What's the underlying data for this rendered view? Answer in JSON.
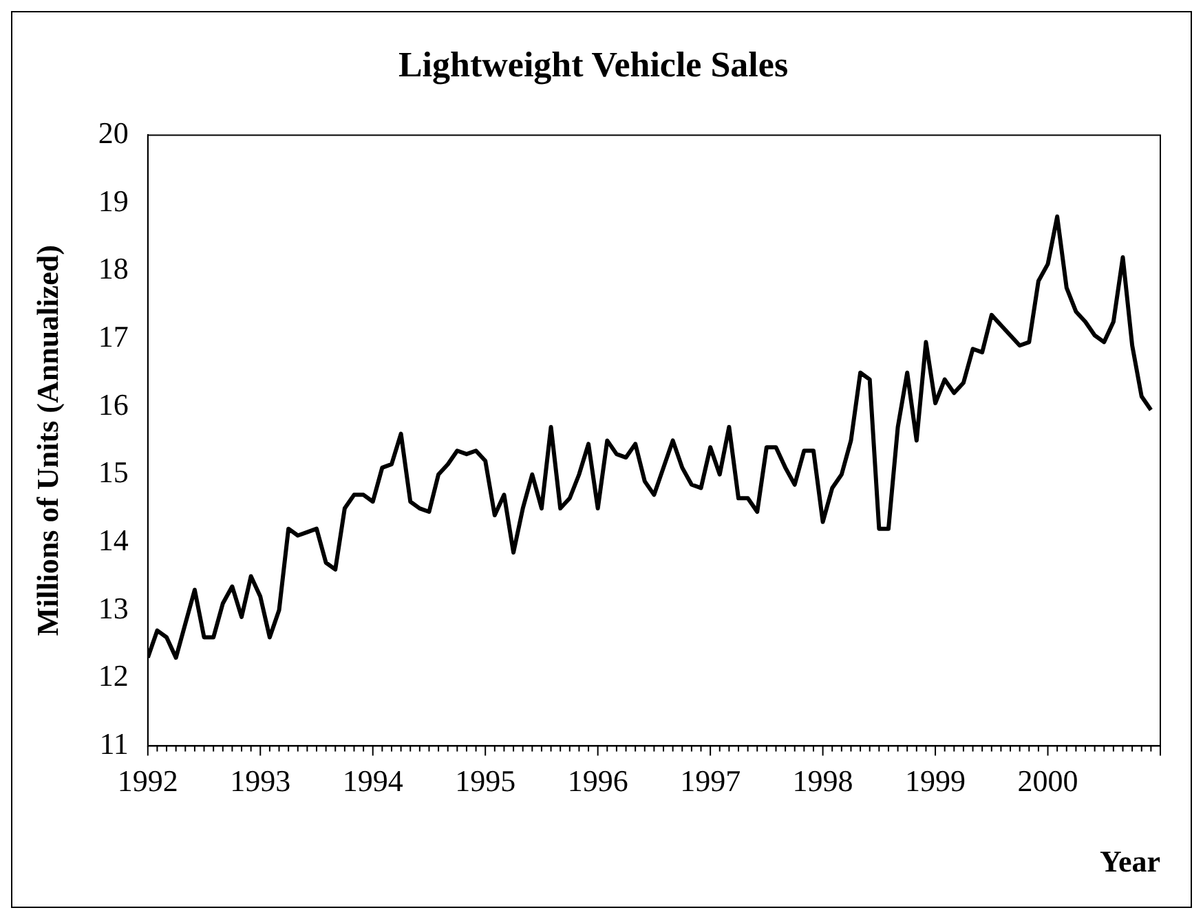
{
  "chart_data": {
    "type": "line",
    "title": "Lightweight Vehicle Sales",
    "xlabel": "Year",
    "ylabel": "Millions of Units (Annualized)",
    "x": [
      "1992-01",
      "1992-02",
      "1992-03",
      "1992-04",
      "1992-05",
      "1992-06",
      "1992-07",
      "1992-08",
      "1992-09",
      "1992-10",
      "1992-11",
      "1992-12",
      "1993-01",
      "1993-02",
      "1993-03",
      "1993-04",
      "1993-05",
      "1993-06",
      "1993-07",
      "1993-08",
      "1993-09",
      "1993-10",
      "1993-11",
      "1993-12",
      "1994-01",
      "1994-02",
      "1994-03",
      "1994-04",
      "1994-05",
      "1994-06",
      "1994-07",
      "1994-08",
      "1994-09",
      "1994-10",
      "1994-11",
      "1994-12",
      "1995-01",
      "1995-02",
      "1995-03",
      "1995-04",
      "1995-05",
      "1995-06",
      "1995-07",
      "1995-08",
      "1995-09",
      "1995-10",
      "1995-11",
      "1995-12",
      "1996-01",
      "1996-02",
      "1996-03",
      "1996-04",
      "1996-05",
      "1996-06",
      "1996-07",
      "1996-08",
      "1996-09",
      "1996-10",
      "1996-11",
      "1996-12",
      "1997-01",
      "1997-02",
      "1997-03",
      "1997-04",
      "1997-05",
      "1997-06",
      "1997-07",
      "1997-08",
      "1997-09",
      "1997-10",
      "1997-11",
      "1997-12",
      "1998-01",
      "1998-02",
      "1998-03",
      "1998-04",
      "1998-05",
      "1998-06",
      "1998-07",
      "1998-08",
      "1998-09",
      "1998-10",
      "1998-11",
      "1998-12",
      "1999-01",
      "1999-02",
      "1999-03",
      "1999-04",
      "1999-05",
      "1999-06",
      "1999-07",
      "1999-08",
      "1999-09",
      "1999-10",
      "1999-11",
      "1999-12",
      "2000-01",
      "2000-02",
      "2000-03",
      "2000-04",
      "2000-05",
      "2000-06",
      "2000-07",
      "2000-08",
      "2000-09",
      "2000-10",
      "2000-11",
      "2000-12"
    ],
    "series": [
      {
        "color": "#000000",
        "values": [
          12.3,
          12.7,
          12.6,
          12.3,
          12.8,
          13.3,
          12.6,
          12.6,
          13.1,
          13.35,
          12.9,
          13.5,
          13.2,
          12.6,
          13.0,
          14.2,
          14.1,
          14.15,
          14.2,
          13.7,
          13.6,
          14.5,
          14.7,
          14.7,
          14.6,
          15.1,
          15.15,
          15.6,
          14.6,
          14.5,
          14.45,
          15.0,
          15.15,
          15.35,
          15.3,
          15.35,
          15.2,
          14.4,
          14.7,
          13.85,
          14.5,
          15.0,
          14.5,
          15.7,
          14.5,
          14.65,
          15.0,
          15.45,
          14.5,
          15.5,
          15.3,
          15.25,
          15.45,
          14.9,
          14.7,
          15.1,
          15.5,
          15.1,
          14.85,
          14.8,
          15.4,
          15.0,
          15.7,
          14.65,
          14.65,
          14.45,
          15.4,
          15.4,
          15.1,
          14.85,
          15.35,
          15.35,
          14.3,
          14.8,
          15.0,
          15.5,
          16.5,
          16.4,
          14.2,
          14.2,
          15.7,
          16.5,
          15.5,
          16.95,
          16.05,
          16.4,
          16.2,
          16.35,
          16.85,
          16.8,
          17.35,
          17.2,
          17.05,
          16.9,
          16.95,
          17.85,
          18.1,
          18.8,
          17.75,
          17.4,
          17.25,
          17.05,
          16.95,
          17.25,
          18.2,
          16.9,
          16.15,
          15.95
        ]
      }
    ],
    "xlim": [
      "1992-01",
      "2001-01"
    ],
    "xticks": [
      "1992",
      "1993",
      "1994",
      "1995",
      "1996",
      "1997",
      "1998",
      "1999",
      "2000"
    ],
    "ylim": [
      11,
      20
    ],
    "yticks": [
      11,
      12,
      13,
      14,
      15,
      16,
      17,
      18,
      19,
      20
    ],
    "grid": false,
    "legend": false,
    "marker": "none",
    "line_style": "solid"
  }
}
